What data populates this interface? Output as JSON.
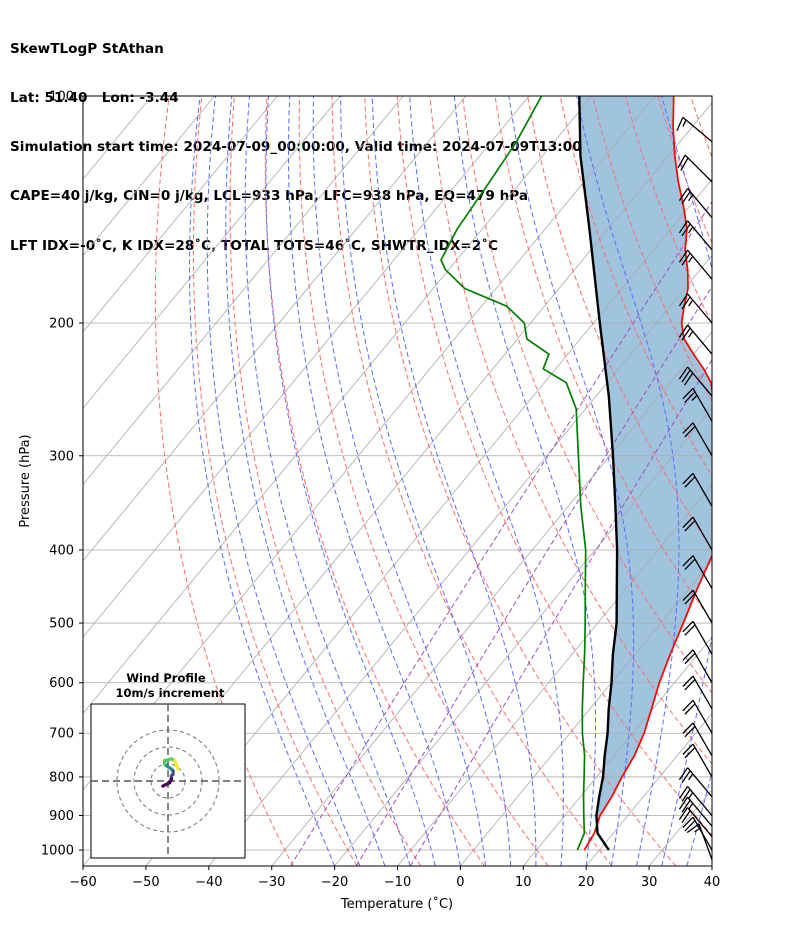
{
  "header": {
    "lines": [
      "SkewTLogP StAthan",
      "Lat: 51.40   Lon: -3.44",
      "Simulation start time: 2024-07-09_00:00:00, Valid time: 2024-07-09T13:00:00.00",
      "CAPE=40 j/kg, CIN=0 j/kg, LCL=933 hPa, LFC=938 hPa, EQ=479 hPa",
      "LFT IDX=-0˚C, K IDX=28˚C, TOTAL TOTS=46˚C, SHWTR_IDX=2˚C"
    ]
  },
  "chart_data": {
    "type": "line",
    "subtype": "skew-t log-p",
    "xlabel": "Temperature (˚C)",
    "ylabel": "Pressure (hPa)",
    "xlim": [
      -60,
      40
    ],
    "ylim": [
      1050,
      100
    ],
    "yscale": "log",
    "grid": true,
    "x_ticks": [
      -60,
      -50,
      -40,
      -30,
      -20,
      -10,
      0,
      10,
      20,
      30,
      40
    ],
    "x_tick_labels": [
      "−60",
      "−50",
      "−40",
      "−30",
      "−20",
      "−10",
      "0",
      "10",
      "20",
      "30",
      "40"
    ],
    "y_ticks": [
      1000,
      900,
      800,
      700,
      600,
      500,
      400,
      300,
      200,
      100
    ],
    "y_tick_labels": [
      "1000",
      "900",
      "800",
      "700",
      "600",
      "500",
      "400",
      "300",
      "200",
      "100"
    ],
    "colors": {
      "temperature": "#ff0000",
      "dewpoint": "#008000",
      "parcel": "#000000",
      "cape_fill": "#a0c4de",
      "dry_adiabats": "#ff6a6a",
      "moist_adiabats": "#5a6aff",
      "mixing_ratio": "#9c4fc1",
      "isotherms": "#aaaaaa"
    },
    "series": [
      {
        "key": "temperature",
        "points": [
          [
            1000,
            17.6
          ],
          [
            950,
            17.0
          ],
          [
            900,
            15.6
          ],
          [
            850,
            15.0
          ],
          [
            800,
            14.0
          ],
          [
            750,
            13.2
          ],
          [
            700,
            11.8
          ],
          [
            650,
            9.8
          ],
          [
            600,
            7.6
          ],
          [
            550,
            5.6
          ],
          [
            500,
            3.6
          ],
          [
            450,
            1.3
          ],
          [
            400,
            -1.0
          ],
          [
            350,
            -6.6
          ],
          [
            300,
            -12.7
          ],
          [
            280,
            -16.0
          ],
          [
            260,
            -19.5
          ],
          [
            240,
            -23.5
          ],
          [
            230,
            -26.5
          ],
          [
            220,
            -30.0
          ],
          [
            210,
            -33.5
          ],
          [
            200,
            -36.0
          ],
          [
            190,
            -37.8
          ],
          [
            180,
            -39.5
          ],
          [
            170,
            -42.0
          ],
          [
            160,
            -45.0
          ],
          [
            150,
            -47.5
          ],
          [
            140,
            -51.0
          ],
          [
            130,
            -55.0
          ],
          [
            120,
            -59.0
          ],
          [
            110,
            -63.0
          ],
          [
            100,
            -67.0
          ]
        ]
      },
      {
        "key": "dewpoint",
        "points": [
          [
            1000,
            16.5
          ],
          [
            950,
            15.4
          ],
          [
            900,
            13.0
          ],
          [
            850,
            10.5
          ],
          [
            800,
            8.0
          ],
          [
            750,
            5.3
          ],
          [
            700,
            2.0
          ],
          [
            650,
            -1.2
          ],
          [
            600,
            -4.5
          ],
          [
            550,
            -8.0
          ],
          [
            500,
            -12.0
          ],
          [
            450,
            -16.5
          ],
          [
            400,
            -21.5
          ],
          [
            350,
            -28.0
          ],
          [
            300,
            -35.0
          ],
          [
            260,
            -41.5
          ],
          [
            240,
            -46.5
          ],
          [
            230,
            -52.0
          ],
          [
            220,
            -53.0
          ],
          [
            210,
            -58.5
          ],
          [
            200,
            -61.0
          ],
          [
            190,
            -66.0
          ],
          [
            180,
            -75.0
          ],
          [
            170,
            -80.5
          ],
          [
            165,
            -82.5
          ],
          [
            150,
            -84.0
          ],
          [
            130,
            -85.0
          ],
          [
            115,
            -86.0
          ],
          [
            100,
            -88.0
          ]
        ]
      },
      {
        "key": "parcel",
        "points": [
          [
            1000,
            21.5
          ],
          [
            950,
            17.5
          ],
          [
            900,
            15.0
          ],
          [
            850,
            13.0
          ],
          [
            800,
            11.0
          ],
          [
            750,
            8.5
          ],
          [
            700,
            6.0
          ],
          [
            650,
            3.0
          ],
          [
            600,
            0.0
          ],
          [
            550,
            -3.5
          ],
          [
            500,
            -7.0
          ],
          [
            450,
            -11.5
          ],
          [
            400,
            -16.5
          ],
          [
            350,
            -22.5
          ],
          [
            300,
            -29.5
          ],
          [
            250,
            -38.0
          ],
          [
            200,
            -49.0
          ],
          [
            150,
            -63.0
          ],
          [
            120,
            -74.0
          ],
          [
            100,
            -82.0
          ]
        ]
      }
    ],
    "wind_barbs": [
      {
        "p": 1030,
        "speed": 15,
        "dir": 340
      },
      {
        "p": 1000,
        "speed": 20,
        "dir": 330
      },
      {
        "p": 960,
        "speed": 20,
        "dir": 320
      },
      {
        "p": 930,
        "speed": 25,
        "dir": 320
      },
      {
        "p": 900,
        "speed": 25,
        "dir": 320
      },
      {
        "p": 850,
        "speed": 25,
        "dir": 320
      },
      {
        "p": 800,
        "speed": 20,
        "dir": 330
      },
      {
        "p": 750,
        "speed": 20,
        "dir": 330
      },
      {
        "p": 700,
        "speed": 20,
        "dir": 330
      },
      {
        "p": 650,
        "speed": 20,
        "dir": 330
      },
      {
        "p": 600,
        "speed": 20,
        "dir": 330
      },
      {
        "p": 550,
        "speed": 20,
        "dir": 330
      },
      {
        "p": 500,
        "speed": 20,
        "dir": 330
      },
      {
        "p": 450,
        "speed": 20,
        "dir": 330
      },
      {
        "p": 400,
        "speed": 20,
        "dir": 330
      },
      {
        "p": 350,
        "speed": 20,
        "dir": 330
      },
      {
        "p": 300,
        "speed": 20,
        "dir": 330
      },
      {
        "p": 270,
        "speed": 25,
        "dir": 330
      },
      {
        "p": 250,
        "speed": 30,
        "dir": 320
      },
      {
        "p": 220,
        "speed": 25,
        "dir": 320
      },
      {
        "p": 200,
        "speed": 25,
        "dir": 320
      },
      {
        "p": 175,
        "speed": 25,
        "dir": 320
      },
      {
        "p": 160,
        "speed": 25,
        "dir": 320
      },
      {
        "p": 145,
        "speed": 25,
        "dir": 320
      },
      {
        "p": 130,
        "speed": 20,
        "dir": 315
      },
      {
        "p": 115,
        "speed": 15,
        "dir": 310
      }
    ],
    "hodograph": {
      "title": "Wind Profile",
      "subtitle": "10m/s increment",
      "rings": [
        10,
        20,
        30
      ],
      "colormap": [
        "#440154",
        "#3b528b",
        "#21918c",
        "#5ec962",
        "#fde725"
      ],
      "uv": [
        [
          -3,
          -3
        ],
        [
          1,
          -1
        ],
        [
          2,
          1
        ],
        [
          2,
          3
        ],
        [
          3,
          4
        ],
        [
          3,
          6
        ],
        [
          2,
          7
        ],
        [
          -1,
          9
        ],
        [
          -2,
          10
        ],
        [
          -2,
          12
        ],
        [
          2,
          13
        ],
        [
          4,
          12
        ],
        [
          5,
          9
        ],
        [
          6,
          7
        ]
      ]
    }
  }
}
